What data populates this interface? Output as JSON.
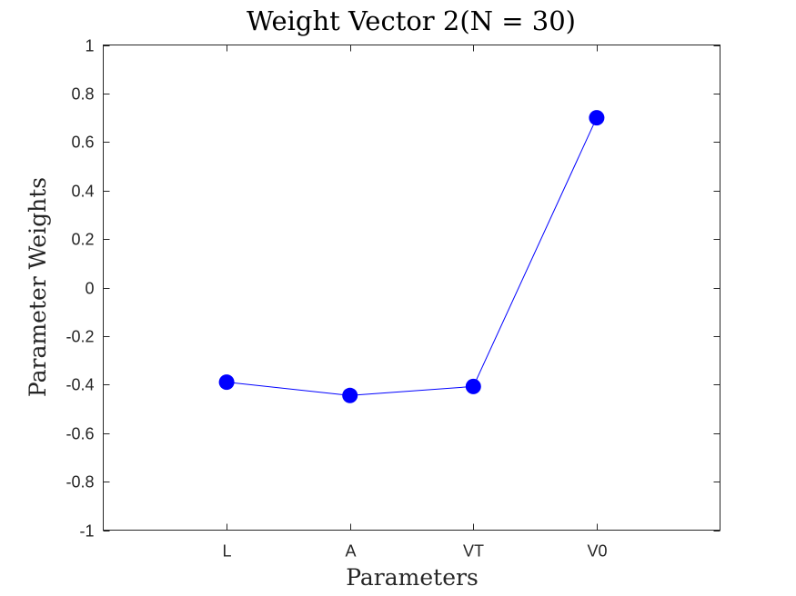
{
  "chart_data": {
    "type": "line",
    "title": "Weight Vector 2(N = 30)",
    "xlabel": "Parameters",
    "ylabel": "Parameter Weights",
    "categories": [
      "L",
      "A",
      "VT",
      "V0"
    ],
    "series": [
      {
        "values": [
          -0.39,
          -0.445,
          -0.408,
          0.7
        ],
        "color": "#0000ff"
      }
    ],
    "ylim": [
      -1,
      1
    ],
    "yticks": [
      1,
      0.8,
      0.6,
      0.4,
      0.2,
      0,
      -0.2,
      -0.4,
      -0.6,
      -0.8,
      -1
    ],
    "ytick_labels": [
      "1",
      "0.8",
      "0.6",
      "0.4",
      "0.2",
      "0",
      "-0.2",
      "-0.4",
      "-0.6",
      "-0.8",
      "-1"
    ],
    "grid": false,
    "marker": "filled-circle"
  }
}
